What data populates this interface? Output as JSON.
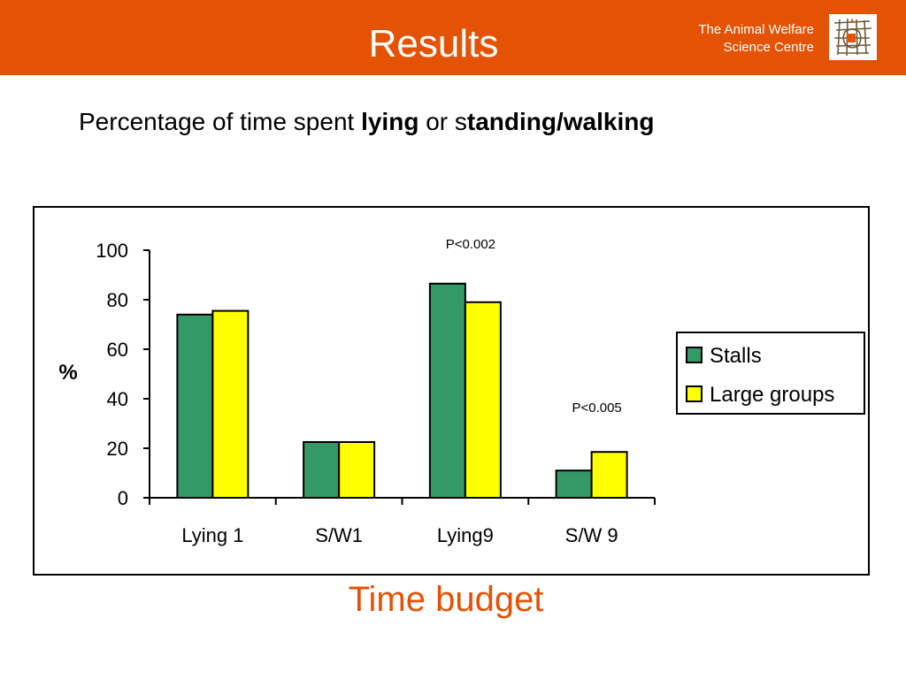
{
  "header": {
    "title": "Results",
    "org_line1": "The Animal Welfare",
    "org_line2": "Science Centre",
    "logo_icon": "animal-welfare-logo-icon",
    "background": "#e45204"
  },
  "subtitle": {
    "part1": "Percentage of time spent ",
    "part2": "lying",
    "part3": " or s",
    "part4": "tanding/walking"
  },
  "chart_data": {
    "type": "bar",
    "categories": [
      "Lying 1",
      "S/W1",
      "Lying9",
      "S/W 9"
    ],
    "series": [
      {
        "name": "Stalls",
        "values": [
          74,
          22.5,
          86.5,
          11
        ],
        "color": "#339966"
      },
      {
        "name": "Large groups",
        "values": [
          75.5,
          22.5,
          79,
          18.5
        ],
        "color": "#ffff00"
      }
    ],
    "ylabel": "%",
    "ylim": [
      0,
      100
    ],
    "yticks": [
      "0",
      "20",
      "40",
      "60",
      "80",
      "100"
    ],
    "annotations": [
      {
        "text": "P<0.002",
        "category": "Lying9"
      },
      {
        "text": "P<0.005",
        "category": "S/W 9"
      }
    ],
    "legend_position": "right",
    "grid": false
  },
  "footer": {
    "title": "Time budget",
    "color": "#e45204"
  }
}
